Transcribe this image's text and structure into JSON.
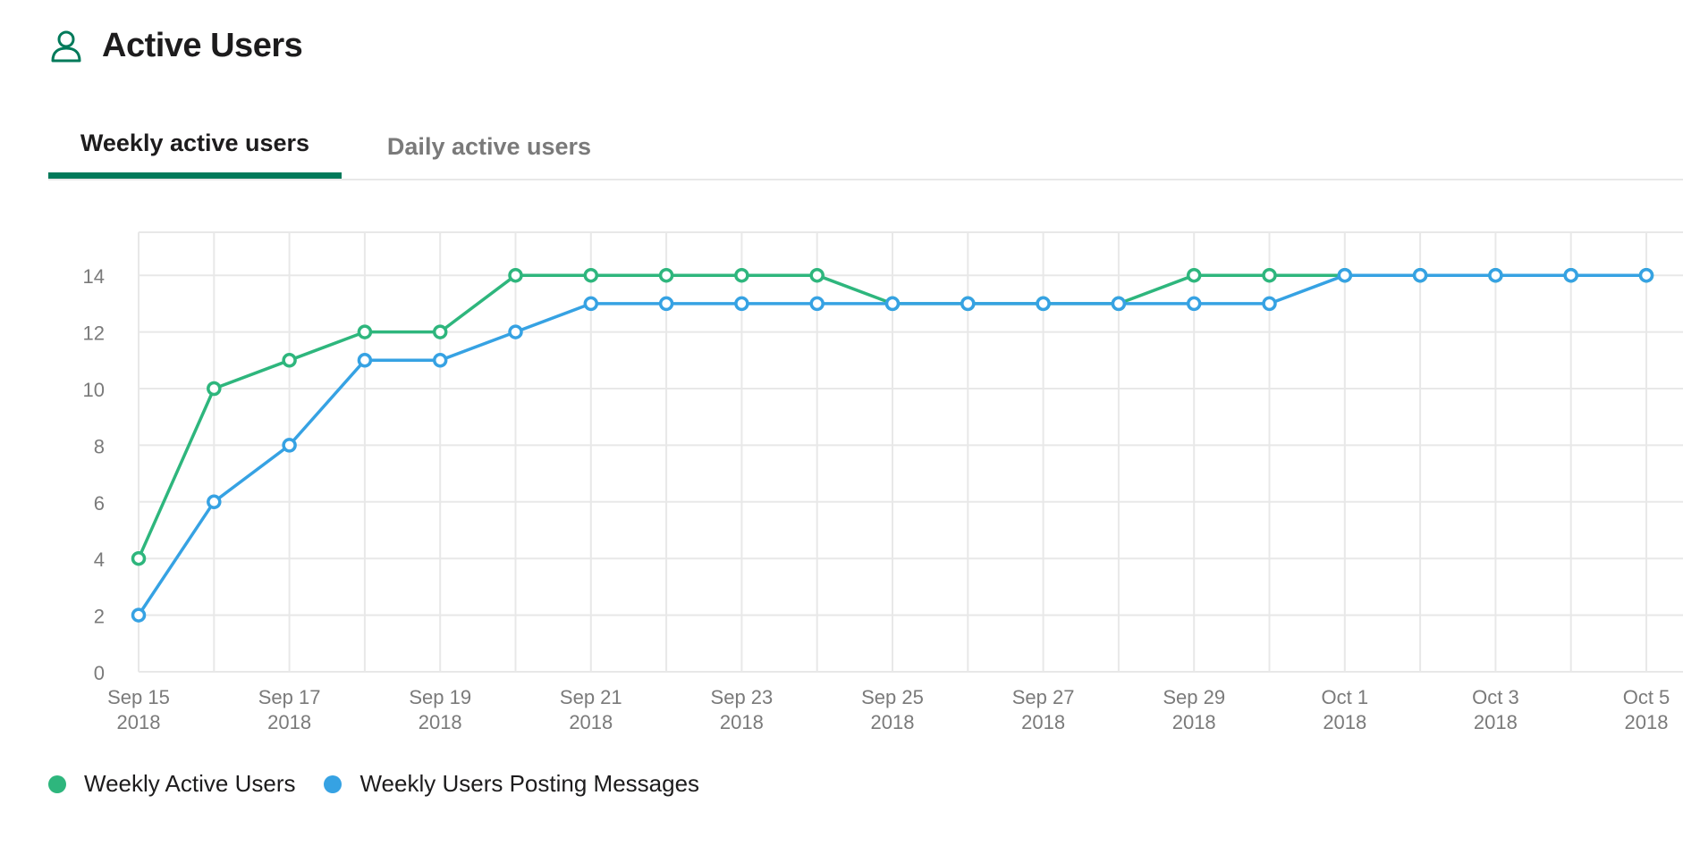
{
  "header": {
    "title": "Active Users",
    "icon": "user-icon",
    "icon_color": "#007a5a"
  },
  "tabs": [
    {
      "label": "Weekly active users",
      "active": true
    },
    {
      "label": "Daily active users",
      "active": false
    }
  ],
  "colors": {
    "accent": "#007a5a",
    "series_green": "#2eb67d",
    "series_blue": "#36a2e3",
    "grid": "#e8e8e8",
    "tick": "#7a7a7a"
  },
  "chart_data": {
    "type": "line",
    "title": "",
    "xlabel": "",
    "ylabel": "",
    "ylim": [
      0,
      15.5
    ],
    "yticks": [
      0,
      2,
      4,
      6,
      8,
      10,
      12,
      14
    ],
    "grid": true,
    "legend_position": "bottom-left",
    "x": [
      "Sep 15 2018",
      "Sep 16 2018",
      "Sep 17 2018",
      "Sep 18 2018",
      "Sep 19 2018",
      "Sep 20 2018",
      "Sep 21 2018",
      "Sep 22 2018",
      "Sep 23 2018",
      "Sep 24 2018",
      "Sep 25 2018",
      "Sep 26 2018",
      "Sep 27 2018",
      "Sep 28 2018",
      "Sep 29 2018",
      "Sep 30 2018",
      "Oct 1 2018",
      "Oct 2 2018",
      "Oct 3 2018",
      "Oct 4 2018",
      "Oct 5 2018"
    ],
    "x_tick_labels": [
      {
        "index": 0,
        "line1": "Sep 15",
        "line2": "2018"
      },
      {
        "index": 2,
        "line1": "Sep 17",
        "line2": "2018"
      },
      {
        "index": 4,
        "line1": "Sep 19",
        "line2": "2018"
      },
      {
        "index": 6,
        "line1": "Sep 21",
        "line2": "2018"
      },
      {
        "index": 8,
        "line1": "Sep 23",
        "line2": "2018"
      },
      {
        "index": 10,
        "line1": "Sep 25",
        "line2": "2018"
      },
      {
        "index": 12,
        "line1": "Sep 27",
        "line2": "2018"
      },
      {
        "index": 14,
        "line1": "Sep 29",
        "line2": "2018"
      },
      {
        "index": 16,
        "line1": "Oct 1",
        "line2": "2018"
      },
      {
        "index": 18,
        "line1": "Oct 3",
        "line2": "2018"
      },
      {
        "index": 20,
        "line1": "Oct 5",
        "line2": "2018"
      }
    ],
    "series": [
      {
        "name": "Weekly Active Users",
        "color": "#2eb67d",
        "values": [
          4,
          10,
          11,
          12,
          12,
          14,
          14,
          14,
          14,
          14,
          13,
          13,
          13,
          13,
          14,
          14,
          14,
          14,
          14,
          14,
          14
        ]
      },
      {
        "name": "Weekly Users Posting Messages",
        "color": "#36a2e3",
        "values": [
          2,
          6,
          8,
          11,
          11,
          12,
          13,
          13,
          13,
          13,
          13,
          13,
          13,
          13,
          13,
          13,
          14,
          14,
          14,
          14,
          14
        ]
      }
    ]
  }
}
